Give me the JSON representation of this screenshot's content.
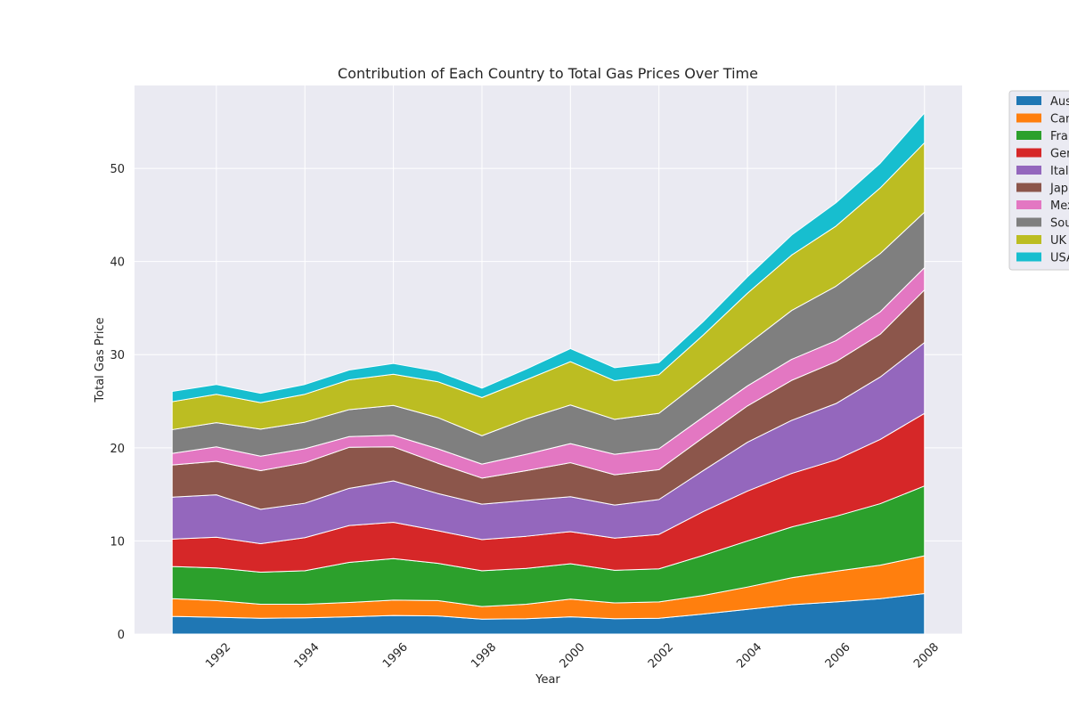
{
  "chart_data": {
    "type": "area",
    "stacked": true,
    "title": "Contribution of Each Country to Total Gas Prices Over Time",
    "xlabel": "Year",
    "ylabel": "Total Gas Price",
    "x": [
      1991,
      1992,
      1993,
      1994,
      1995,
      1996,
      1997,
      1998,
      1999,
      2000,
      2001,
      2002,
      2003,
      2004,
      2005,
      2006,
      2007,
      2008
    ],
    "xlim": [
      1990.15,
      2008.85
    ],
    "ylim": [
      0,
      58.9
    ],
    "xticks": [
      1992,
      1994,
      1996,
      1998,
      2000,
      2002,
      2004,
      2006,
      2008
    ],
    "xtick_labels": [
      "1992",
      "1994",
      "1996",
      "1998",
      "2000",
      "2002",
      "2004",
      "2006",
      "2008"
    ],
    "yticks": [
      0,
      10,
      20,
      30,
      40,
      50
    ],
    "ytick_labels": [
      "0",
      "10",
      "20",
      "30",
      "40",
      "50"
    ],
    "grid": true,
    "legend_position": "outside-right",
    "series": [
      {
        "name": "Australia",
        "legend_label": "Aus",
        "color": "#1f77b4",
        "values": [
          1.9,
          1.8,
          1.7,
          1.75,
          1.85,
          2.0,
          1.95,
          1.6,
          1.65,
          1.85,
          1.65,
          1.7,
          2.15,
          2.65,
          3.15,
          3.45,
          3.8,
          4.35
        ]
      },
      {
        "name": "Canada",
        "legend_label": "Can",
        "color": "#ff7f0e",
        "values": [
          1.9,
          1.8,
          1.5,
          1.45,
          1.55,
          1.65,
          1.65,
          1.35,
          1.55,
          1.9,
          1.7,
          1.75,
          2.0,
          2.4,
          2.9,
          3.3,
          3.6,
          4.05
        ]
      },
      {
        "name": "France",
        "legend_label": "Fran",
        "color": "#2ca02c",
        "values": [
          3.45,
          3.5,
          3.45,
          3.6,
          4.3,
          4.45,
          4.0,
          3.85,
          3.85,
          3.8,
          3.5,
          3.55,
          4.3,
          4.95,
          5.45,
          5.9,
          6.6,
          7.5
        ]
      },
      {
        "name": "Germany",
        "legend_label": "Ger",
        "color": "#d62728",
        "values": [
          2.95,
          3.3,
          3.05,
          3.55,
          3.95,
          3.9,
          3.5,
          3.35,
          3.45,
          3.45,
          3.45,
          3.7,
          4.7,
          5.35,
          5.75,
          6.05,
          6.9,
          7.8
        ]
      },
      {
        "name": "Italy",
        "legend_label": "Italy",
        "color": "#9467bd",
        "values": [
          4.5,
          4.55,
          3.7,
          3.7,
          4.0,
          4.45,
          4.0,
          3.8,
          3.85,
          3.75,
          3.55,
          3.75,
          4.4,
          5.25,
          5.7,
          6.05,
          6.7,
          7.6
        ]
      },
      {
        "name": "Japan",
        "legend_label": "Jap",
        "color": "#8c564b",
        "values": [
          3.45,
          3.6,
          4.15,
          4.35,
          4.4,
          3.65,
          3.25,
          2.8,
          3.2,
          3.65,
          3.25,
          3.2,
          3.55,
          3.9,
          4.3,
          4.5,
          4.6,
          5.65
        ]
      },
      {
        "name": "Mexico",
        "legend_label": "Mex",
        "color": "#e377c2",
        "values": [
          1.25,
          1.55,
          1.55,
          1.5,
          1.15,
          1.25,
          1.55,
          1.5,
          1.75,
          2.05,
          2.2,
          2.25,
          2.2,
          2.15,
          2.25,
          2.25,
          2.4,
          2.4
        ]
      },
      {
        "name": "South Korea",
        "legend_label": "Sou",
        "color": "#7f7f7f",
        "values": [
          2.55,
          2.6,
          2.9,
          2.85,
          2.9,
          3.2,
          3.35,
          3.05,
          3.8,
          4.15,
          3.75,
          3.8,
          4.1,
          4.45,
          5.25,
          5.85,
          6.25,
          5.95
        ]
      },
      {
        "name": "UK",
        "legend_label": "UK",
        "color": "#bcbd22",
        "values": [
          3.0,
          3.05,
          2.85,
          3.0,
          3.2,
          3.35,
          3.85,
          4.1,
          4.2,
          4.65,
          4.15,
          4.15,
          4.7,
          5.5,
          5.95,
          6.45,
          7.05,
          7.45
        ]
      },
      {
        "name": "USA",
        "legend_label": "USA",
        "color": "#17becf",
        "values": [
          1.1,
          1.05,
          1.0,
          1.05,
          1.05,
          1.15,
          1.1,
          1.0,
          1.15,
          1.4,
          1.4,
          1.3,
          1.45,
          1.75,
          2.15,
          2.5,
          2.65,
          3.2
        ]
      }
    ]
  }
}
